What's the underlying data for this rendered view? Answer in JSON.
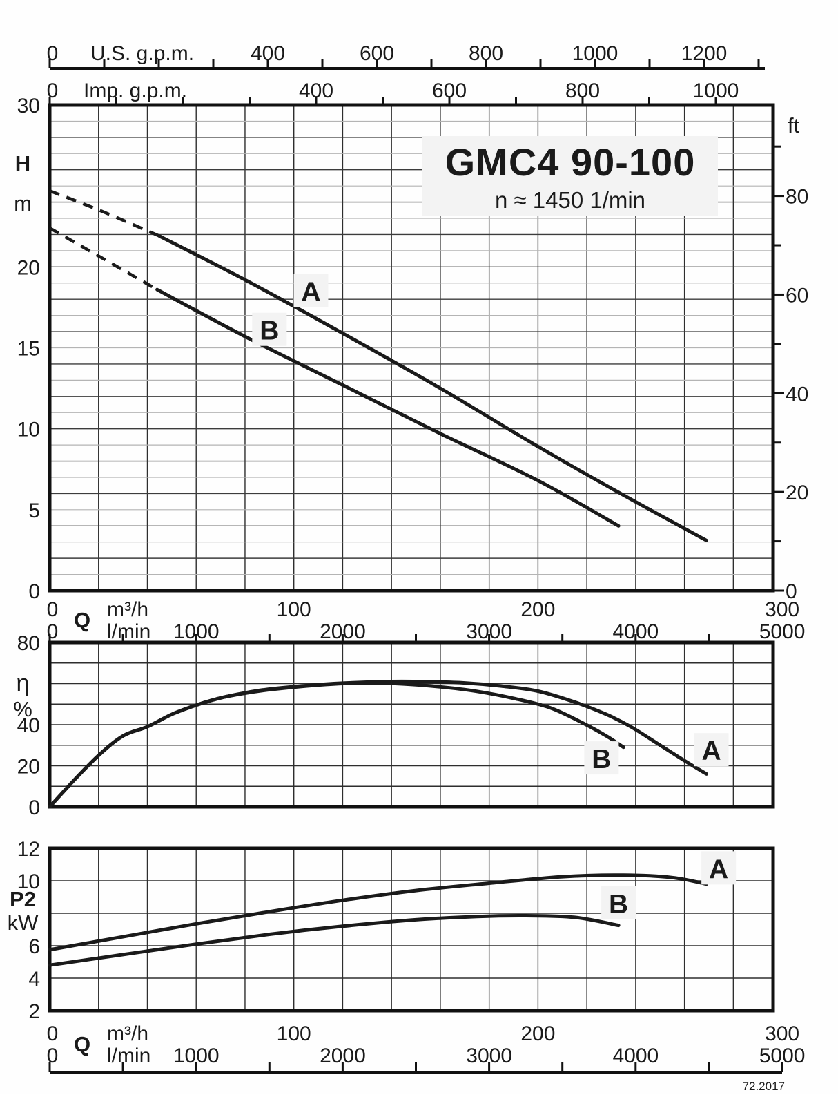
{
  "figure": {
    "title": "GMC4 90-100",
    "subtitle": "n ≈ 1450 1/min",
    "note": "72.2017",
    "labels": {
      "q": "Q",
      "m3h": "m³/h",
      "lmin": "l/min",
      "usgpm": "U.S. g.p.m.",
      "impgpm": "Imp. g.p.m.",
      "H": "H",
      "m": "m",
      "ft": "ft",
      "eta": "η",
      "pct": "%",
      "p2": "P2",
      "kw": "kW"
    },
    "colors": {
      "ink": "#1a1a1a",
      "grid_dark": "#2e2e2e",
      "grid_light": "#b4b4b4",
      "box_bg": "#f3f3f3"
    }
  },
  "chart_data": [
    {
      "id": "head",
      "type": "line",
      "title": "GMC4 90-100",
      "subtitle": "n ≈ 1450 1/min",
      "xlabel": "Q",
      "ylabel": "H m",
      "ylabel_right": "ft",
      "grid": "on",
      "x_axes": [
        {
          "unit": "U.S. g.p.m.",
          "labeled_ticks": [
            0,
            400,
            600,
            800,
            1000,
            1200
          ],
          "tick_step": 100,
          "max": 1300
        },
        {
          "unit": "Imp. g.p.m.",
          "labeled_ticks": [
            0,
            400,
            600,
            800,
            1000
          ],
          "tick_step": 100,
          "max": 1000
        },
        {
          "unit": "m³/h",
          "labeled_ticks": [
            0,
            100,
            200,
            300
          ],
          "max": 300
        },
        {
          "unit": "l/min",
          "labeled_ticks": [
            0,
            1000,
            2000,
            3000,
            4000,
            5000
          ],
          "tick_step": 500,
          "max": 5000
        }
      ],
      "y_axis": {
        "unit": "m",
        "labeled_ticks": [
          0,
          5,
          10,
          15,
          20,
          30
        ],
        "minor_step": 1,
        "range": [
          0,
          30
        ]
      },
      "y_axis_right": {
        "unit": "ft",
        "labeled_ticks": [
          0,
          20,
          40,
          60,
          80
        ],
        "minor_step": 10,
        "range": [
          0,
          98.4
        ]
      },
      "series": [
        {
          "name": "A",
          "dashed": [
            [
              0,
              24.7
            ],
            [
              22,
              23.4
            ],
            [
              45,
              21.9
            ]
          ],
          "solid": [
            [
              45,
              21.9
            ],
            [
              80,
              19.2
            ],
            [
              120,
              15.9
            ],
            [
              160,
              12.5
            ],
            [
              200,
              8.9
            ],
            [
              235,
              5.9
            ],
            [
              269,
              3.1
            ]
          ],
          "label_at": [
            107,
            18.5
          ]
        },
        {
          "name": "B",
          "dashed": [
            [
              0,
              22.4
            ],
            [
              22,
              20.5
            ],
            [
              44,
              18.6
            ]
          ],
          "solid": [
            [
              44,
              18.6
            ],
            [
              80,
              15.7
            ],
            [
              120,
              12.7
            ],
            [
              160,
              9.7
            ],
            [
              200,
              6.8
            ],
            [
              233,
              4.0
            ]
          ],
          "label_at": [
            90,
            16.1
          ]
        }
      ]
    },
    {
      "id": "efficiency",
      "type": "line",
      "xlabel": "Q",
      "ylabel": "η %",
      "grid": "on",
      "y_axis": {
        "unit": "%",
        "labeled_ticks": [
          0,
          20,
          40,
          80
        ],
        "grid_step": 10,
        "range": [
          0,
          80
        ]
      },
      "series": [
        {
          "name": "A",
          "solid": [
            [
              0,
              0
            ],
            [
              10,
              13
            ],
            [
              20,
              25
            ],
            [
              30,
              34.5
            ],
            [
              40,
              39
            ],
            [
              50,
              45
            ],
            [
              60,
              49.5
            ],
            [
              70,
              53
            ],
            [
              80,
              55.5
            ],
            [
              90,
              57.3
            ],
            [
              105,
              59
            ],
            [
              120,
              60.2
            ],
            [
              140,
              61
            ],
            [
              155,
              60.9
            ],
            [
              170,
              60.3
            ],
            [
              185,
              58.8
            ],
            [
              200,
              56.3
            ],
            [
              215,
              51
            ],
            [
              228,
              45
            ],
            [
              238,
              39
            ],
            [
              250,
              30
            ],
            [
              260,
              22.5
            ],
            [
              269,
              16
            ]
          ],
          "label_at": [
            271,
            27.5
          ]
        },
        {
          "name": "B",
          "solid": [
            [
              0,
              0
            ],
            [
              10,
              13
            ],
            [
              20,
              25
            ],
            [
              30,
              34.5
            ],
            [
              40,
              39
            ],
            [
              50,
              45
            ],
            [
              60,
              49.5
            ],
            [
              70,
              53
            ],
            [
              80,
              55.3
            ],
            [
              90,
              57
            ],
            [
              105,
              58.8
            ],
            [
              120,
              60
            ],
            [
              132,
              60.2
            ],
            [
              145,
              59.8
            ],
            [
              160,
              58.4
            ],
            [
              175,
              56.2
            ],
            [
              190,
              52.8
            ],
            [
              205,
              48.2
            ],
            [
              218,
              41
            ],
            [
              228,
              34.5
            ],
            [
              235,
              29
            ]
          ],
          "label_at": [
            226,
            23.5
          ]
        }
      ]
    },
    {
      "id": "power",
      "type": "line",
      "xlabel": "Q",
      "ylabel": "P2 kW",
      "grid": "on",
      "y_axis": {
        "unit": "kW",
        "labeled_ticks": [
          2,
          4,
          6,
          10,
          12
        ],
        "grid_step": 2,
        "range": [
          2,
          12
        ]
      },
      "series": [
        {
          "name": "A",
          "solid": [
            [
              0,
              5.75
            ],
            [
              30,
              6.55
            ],
            [
              60,
              7.35
            ],
            [
              90,
              8.1
            ],
            [
              120,
              8.8
            ],
            [
              150,
              9.4
            ],
            [
              180,
              9.85
            ],
            [
              210,
              10.25
            ],
            [
              235,
              10.35
            ],
            [
              255,
              10.2
            ],
            [
              269,
              9.8
            ]
          ],
          "label_at": [
            274,
            10.75
          ]
        },
        {
          "name": "B",
          "solid": [
            [
              0,
              4.8
            ],
            [
              30,
              5.45
            ],
            [
              60,
              6.1
            ],
            [
              90,
              6.7
            ],
            [
              120,
              7.2
            ],
            [
              150,
              7.6
            ],
            [
              175,
              7.8
            ],
            [
              195,
              7.85
            ],
            [
              215,
              7.75
            ],
            [
              233,
              7.25
            ]
          ],
          "label_at": [
            233,
            8.6
          ]
        }
      ]
    }
  ]
}
